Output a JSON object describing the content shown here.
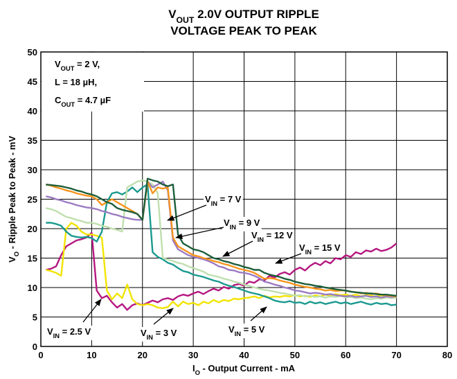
{
  "chart_data": {
    "type": "line",
    "title": [
      [
        {
          "text": "V"
        },
        {
          "text": "OUT",
          "sub": true
        },
        {
          "text": " 2.0V OUTPUT RIPPLE"
        }
      ],
      [
        {
          "text": "VOLTAGE PEAK TO PEAK"
        }
      ]
    ],
    "x_label": [
      {
        "text": "I"
      },
      {
        "text": "O",
        "sub": true
      },
      {
        "text": " - Output Current - mA"
      }
    ],
    "y_label": [
      {
        "text": "V"
      },
      {
        "text": "O",
        "sub": true
      },
      {
        "text": " - Ripple Peak to Peak - mV"
      }
    ],
    "annotation": [
      [
        {
          "text": "V"
        },
        {
          "text": "OUT",
          "sub": true
        },
        {
          "text": " = 2 V,"
        }
      ],
      [
        {
          "text": "L = 18 µH,"
        }
      ],
      [
        {
          "text": "C"
        },
        {
          "text": "OUT",
          "sub": true
        },
        {
          "text": " = 4.7 µF"
        }
      ]
    ],
    "xlim": [
      0,
      80
    ],
    "xticks": [
      0,
      10,
      20,
      30,
      40,
      50,
      60,
      70,
      80
    ],
    "ylim": [
      0,
      50
    ],
    "yticks": [
      0,
      5,
      10,
      15,
      20,
      25,
      30,
      35,
      40,
      45,
      50
    ],
    "grid": true,
    "x": [
      1,
      2,
      3,
      4,
      5,
      6,
      7,
      8,
      9,
      10,
      11,
      12,
      13,
      14,
      15,
      16,
      17,
      18,
      19,
      20,
      21,
      22,
      23,
      24,
      25,
      26,
      27,
      28,
      29,
      30,
      31,
      32,
      33,
      34,
      35,
      36,
      37,
      38,
      39,
      40,
      41,
      42,
      43,
      44,
      45,
      46,
      47,
      48,
      49,
      50,
      51,
      52,
      53,
      54,
      55,
      56,
      57,
      58,
      59,
      60,
      61,
      62,
      63,
      64,
      65,
      66,
      67,
      68,
      69,
      70
    ],
    "series": [
      {
        "name": [
          {
            "text": "V"
          },
          {
            "text": "IN",
            "sub": true
          },
          {
            "text": " = 2.5 V"
          }
        ],
        "color": "#b5177f",
        "values": [
          13,
          13.2,
          13.6,
          15.5,
          17,
          17.5,
          18,
          18.2,
          18.5,
          19.3,
          9.5,
          8.2,
          8.6,
          7.5,
          6.6,
          7.2,
          6.2,
          7,
          7.3,
          7,
          7.4,
          7.8,
          7.5,
          8,
          8.2,
          7.9,
          8.5,
          8.8,
          8.6,
          9,
          9.3,
          8.9,
          9.4,
          9.8,
          9.5,
          10.1,
          9.8,
          10.4,
          10.6,
          10.3,
          11,
          10.8,
          11.4,
          11.2,
          12,
          11.7,
          12.3,
          12.6,
          12.2,
          13,
          13.4,
          12.9,
          13.7,
          14.2,
          13.8,
          14.5,
          14.1,
          15,
          14.8,
          15.5,
          15.2,
          16,
          15.7,
          16.3,
          16.1,
          16.6,
          16.2,
          16.4,
          16.8,
          17.5
        ]
      },
      {
        "name": [
          {
            "text": "V"
          },
          {
            "text": "IN",
            "sub": true
          },
          {
            "text": " = 3 V"
          }
        ],
        "color": "#f2e400",
        "values": [
          13,
          12.8,
          12.5,
          12,
          20,
          21,
          20.5,
          19.5,
          19,
          19,
          18.8,
          18.5,
          9.5,
          8,
          9,
          8.2,
          10.5,
          8,
          7.2,
          7,
          7.2,
          7,
          6.6,
          6.5,
          6.7,
          7.6,
          6.8,
          7.6,
          7.2,
          7.4,
          7,
          7.6,
          7.3,
          7.9,
          7.5,
          7.9,
          7.7,
          8.1,
          8,
          8.2,
          8.3,
          8.5,
          8.2,
          8.6,
          8.3,
          8.5,
          8.4,
          8.6,
          8.5,
          8.7,
          8.5,
          8.6,
          8.4,
          8.7,
          8.5,
          8.8,
          8.6,
          8.9,
          8.7,
          8.8,
          8.6,
          8.8,
          8.5,
          8.7,
          8.6,
          8.5,
          8.7,
          8.4,
          8.6,
          8.5
        ]
      },
      {
        "name": [
          {
            "text": "V"
          },
          {
            "text": "IN",
            "sub": true
          },
          {
            "text": " = 5 V"
          }
        ],
        "color": "#1a9a8f",
        "values": [
          21,
          21,
          20.8,
          20.5,
          19.5,
          18.8,
          18.6,
          18.5,
          18.6,
          18.4,
          17.8,
          19.5,
          24.5,
          26,
          26.2,
          25.8,
          26.3,
          27,
          26.2,
          27,
          27.5,
          16,
          15.2,
          14.8,
          14.2,
          13.9,
          13.3,
          12.8,
          12.6,
          12.2,
          12,
          11.8,
          11.5,
          11.2,
          11,
          10.6,
          10.3,
          10.1,
          9.8,
          9.5,
          9.2,
          9,
          8.8,
          8.5,
          8.2,
          7.8,
          7.6,
          7.5,
          7.7,
          7.4,
          7.5,
          7.2,
          7.6,
          7.3,
          7.5,
          7.2,
          7.4,
          7.6,
          7.3,
          7.5,
          7.2,
          7.4,
          7.6,
          7.3,
          7.1,
          7.4,
          7.2,
          7.3,
          7,
          7.1
        ]
      },
      {
        "name": [
          {
            "text": "V"
          },
          {
            "text": "IN",
            "sub": true
          },
          {
            "text": " = 7 V"
          }
        ],
        "color": "#bfdfae",
        "values": [
          23.5,
          23.3,
          23,
          22.5,
          22,
          21.8,
          21.5,
          21.3,
          21,
          21,
          20.8,
          20.5,
          20.3,
          20,
          19.8,
          19.5,
          27,
          27.5,
          28,
          28.2,
          28,
          27.5,
          26,
          15,
          14.8,
          14.5,
          14.2,
          14,
          13.6,
          13.3,
          13,
          12.7,
          12.2,
          12,
          11.8,
          11.5,
          11.3,
          11,
          10.8,
          10.5,
          10.3,
          10,
          9.8,
          9.6,
          9.5,
          9.3,
          9.1,
          9,
          8.8,
          8.6,
          8.7,
          8.5,
          8.6,
          8.4,
          8.5,
          8.3,
          8.5,
          8.4,
          8.6,
          8.3,
          8.4,
          8.2,
          8.3,
          8.1,
          8,
          8.2,
          8.1,
          8.3,
          8.2,
          8.3
        ]
      },
      {
        "name": [
          {
            "text": "V"
          },
          {
            "text": "IN",
            "sub": true
          },
          {
            "text": " = 9 V"
          }
        ],
        "color": "#9b7bc1",
        "values": [
          25.5,
          25.3,
          25,
          24.8,
          24.5,
          24.3,
          24,
          23.8,
          23.6,
          23.5,
          23.3,
          23,
          22.8,
          22.5,
          22.3,
          22,
          21.8,
          21.6,
          21.5,
          21.5,
          28,
          27,
          27.5,
          28,
          26.5,
          18,
          16.5,
          16,
          15.5,
          15.2,
          15,
          14.8,
          14.5,
          14.1,
          13.6,
          13.4,
          13,
          12.9,
          12.6,
          12.5,
          12.3,
          12,
          11.6,
          11,
          10.8,
          10.5,
          10.3,
          10,
          9.8,
          9.5,
          9.4,
          9.2,
          9,
          9.1,
          9,
          8.8,
          8.9,
          8.7,
          8.6,
          8.5,
          8.6,
          8.4,
          8.5,
          8.6,
          8.4,
          8.5,
          8.3,
          8.5,
          8.4,
          8.5
        ]
      },
      {
        "name": [
          {
            "text": "V"
          },
          {
            "text": "IN",
            "sub": true
          },
          {
            "text": " = 12 V"
          }
        ],
        "color": "#f7941d",
        "values": [
          27.5,
          27.3,
          27,
          26.8,
          26.5,
          26.3,
          26,
          25.8,
          25.6,
          25.5,
          25,
          24,
          24.5,
          25,
          24.5,
          24,
          23.5,
          23,
          22.5,
          21.5,
          28,
          26,
          27,
          26.8,
          27,
          18.5,
          17,
          16.5,
          16,
          15.5,
          15.3,
          15,
          14.8,
          14.5,
          14.3,
          14,
          13.8,
          13.5,
          13.2,
          13,
          12.8,
          12.5,
          12,
          11.5,
          11.6,
          11.5,
          11.2,
          11,
          10.8,
          10.5,
          10.3,
          10.1,
          10,
          9.8,
          9.7,
          9.5,
          9.6,
          9.4,
          9.5,
          9.5,
          9.3,
          9.2,
          9,
          9.1,
          8.9,
          9,
          8.8,
          8.7,
          8.6,
          8.5
        ]
      },
      {
        "name": [
          {
            "text": "V"
          },
          {
            "text": "IN",
            "sub": true
          },
          {
            "text": " = 15 V"
          }
        ],
        "color": "#1c5e3a",
        "values": [
          27.5,
          27.4,
          27.3,
          27.2,
          27,
          26.8,
          26.5,
          26.3,
          26,
          25.8,
          25.5,
          25,
          24.5,
          24.2,
          23.5,
          23.2,
          23,
          22.8,
          22.5,
          21.5,
          28.5,
          28.2,
          28,
          27.5,
          27.2,
          27.5,
          19,
          17.5,
          17,
          16.5,
          16.3,
          16,
          15.5,
          15,
          14.8,
          14.5,
          14.3,
          14,
          13.8,
          13.5,
          13.3,
          13,
          13,
          12.5,
          12.2,
          12,
          11.8,
          11.5,
          11.3,
          11,
          10.8,
          10.6,
          10.5,
          10.3,
          10.2,
          10,
          9.9,
          9.7,
          9.6,
          9.5,
          9.3,
          9.2,
          9.1,
          9,
          9,
          8.9,
          8.8,
          8.8,
          8.7,
          8.6
        ]
      }
    ]
  }
}
